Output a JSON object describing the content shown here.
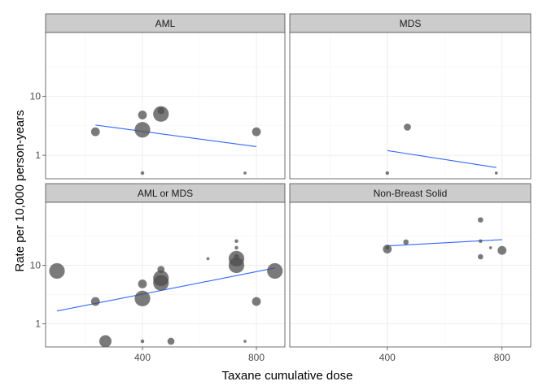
{
  "chart_data": {
    "type": "scatter",
    "facet_layout": "2x2",
    "xlabel": "Taxane cumulative dose",
    "ylabel": "Rate per 10,000 person-years",
    "x_ticks": [
      400,
      800
    ],
    "y_ticks": [
      1,
      10
    ],
    "y_scale": "log10",
    "xlim": [
      60,
      900
    ],
    "ylim": [
      0.4,
      120
    ],
    "grid": true,
    "legend": "none",
    "point_color": "#4d4d4d",
    "line_color": "#3366FF",
    "strip_fill": "#cccccc",
    "panel_border": "#4d4d4d",
    "grid_color": "#ebebeb",
    "panels": [
      {
        "name": "AML",
        "points": [
          {
            "x": 235,
            "y": 2.5,
            "size": 2
          },
          {
            "x": 400,
            "y": 4.8,
            "size": 2
          },
          {
            "x": 400,
            "y": 2.7,
            "size": 4
          },
          {
            "x": 400,
            "y": 0.5,
            "size": 0.5
          },
          {
            "x": 465,
            "y": 5.0,
            "size": 4
          },
          {
            "x": 465,
            "y": 5.7,
            "size": 1.5
          },
          {
            "x": 760,
            "y": 0.5,
            "size": 0.3
          },
          {
            "x": 800,
            "y": 2.5,
            "size": 2
          }
        ],
        "trend": {
          "x": [
            235,
            800
          ],
          "y": [
            3.25,
            1.4
          ]
        }
      },
      {
        "name": "MDS",
        "points": [
          {
            "x": 400,
            "y": 0.5,
            "size": 0.5
          },
          {
            "x": 470,
            "y": 3.0,
            "size": 1.5
          },
          {
            "x": 780,
            "y": 0.5,
            "size": 0.3
          }
        ],
        "trend": {
          "x": [
            400,
            780
          ],
          "y": [
            1.2,
            0.62
          ]
        }
      },
      {
        "name": "AML or MDS",
        "points": [
          {
            "x": 100,
            "y": 8.0,
            "size": 4
          },
          {
            "x": 235,
            "y": 2.4,
            "size": 2
          },
          {
            "x": 270,
            "y": 0.5,
            "size": 3
          },
          {
            "x": 400,
            "y": 4.8,
            "size": 2
          },
          {
            "x": 400,
            "y": 2.7,
            "size": 4
          },
          {
            "x": 400,
            "y": 0.5,
            "size": 0.5
          },
          {
            "x": 465,
            "y": 6.0,
            "size": 4
          },
          {
            "x": 465,
            "y": 5.0,
            "size": 4
          },
          {
            "x": 465,
            "y": 8.5,
            "size": 1.5
          },
          {
            "x": 500,
            "y": 0.5,
            "size": 1.5
          },
          {
            "x": 630,
            "y": 13.0,
            "size": 0.3
          },
          {
            "x": 730,
            "y": 26.0,
            "size": 0.5
          },
          {
            "x": 730,
            "y": 20.0,
            "size": 0.5
          },
          {
            "x": 730,
            "y": 13.0,
            "size": 4
          },
          {
            "x": 730,
            "y": 10.0,
            "size": 4
          },
          {
            "x": 730,
            "y": 14.0,
            "size": 1
          },
          {
            "x": 760,
            "y": 0.5,
            "size": 0.3
          },
          {
            "x": 800,
            "y": 2.4,
            "size": 2
          },
          {
            "x": 865,
            "y": 8.0,
            "size": 4
          }
        ],
        "trend": {
          "x": [
            100,
            865
          ],
          "y": [
            1.65,
            9.0
          ]
        }
      },
      {
        "name": "Non-Breast Solid",
        "points": [
          {
            "x": 400,
            "y": 19.0,
            "size": 2
          },
          {
            "x": 400,
            "y": 20.0,
            "size": 0.5
          },
          {
            "x": 465,
            "y": 25.0,
            "size": 1
          },
          {
            "x": 725,
            "y": 60.0,
            "size": 1
          },
          {
            "x": 725,
            "y": 26.0,
            "size": 0.5
          },
          {
            "x": 725,
            "y": 14.0,
            "size": 1
          },
          {
            "x": 760,
            "y": 20.0,
            "size": 0.3
          },
          {
            "x": 800,
            "y": 18.0,
            "size": 2
          }
        ],
        "trend": {
          "x": [
            400,
            800
          ],
          "y": [
            21.5,
            27.5
          ]
        }
      }
    ]
  }
}
